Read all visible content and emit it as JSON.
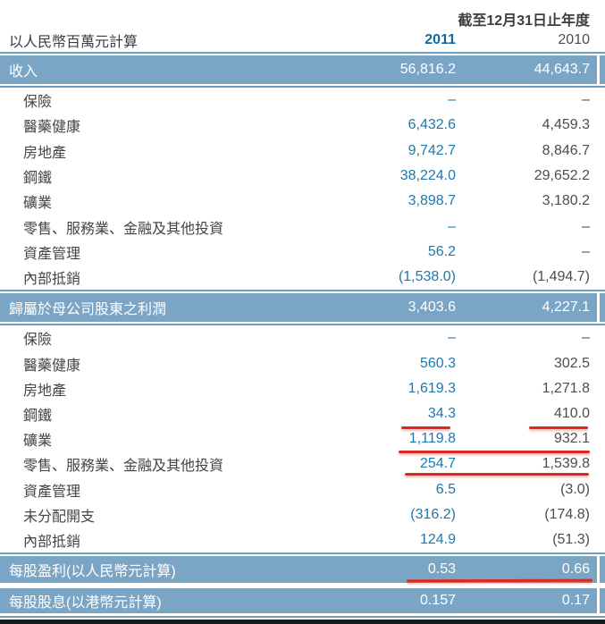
{
  "header": {
    "period": "截至12月31日止年度",
    "unit_label": "以人民幣百萬元計算",
    "col_2011": "2011",
    "col_2010": "2010"
  },
  "revenue_band": {
    "label": "收入",
    "v2011": "56,816.2",
    "v2010": "44,643.7"
  },
  "revenue_rows": [
    {
      "label": "保險",
      "v2011": "–",
      "v2010": "–"
    },
    {
      "label": "醫藥健康",
      "v2011": "6,432.6",
      "v2010": "4,459.3"
    },
    {
      "label": "房地產",
      "v2011": "9,742.7",
      "v2010": "8,846.7"
    },
    {
      "label": "鋼鐵",
      "v2011": "38,224.0",
      "v2010": "29,652.2"
    },
    {
      "label": "礦業",
      "v2011": "3,898.7",
      "v2010": "3,180.2"
    },
    {
      "label": "零售、服務業、金融及其他投資",
      "v2011": "–",
      "v2010": "–"
    },
    {
      "label": "資產管理",
      "v2011": "56.2",
      "v2010": "–"
    },
    {
      "label": "內部抵銷",
      "v2011": "(1,538.0)",
      "v2010": "(1,494.7)"
    }
  ],
  "profit_band": {
    "label": "歸屬於母公司股東之利潤",
    "v2011": "3,403.6",
    "v2010": "4,227.1"
  },
  "profit_rows": [
    {
      "label": "保險",
      "v2011": "–",
      "v2010": "–"
    },
    {
      "label": "醫藥健康",
      "v2011": "560.3",
      "v2010": "302.5"
    },
    {
      "label": "房地產",
      "v2011": "1,619.3",
      "v2010": "1,271.8"
    },
    {
      "label": "鋼鐵",
      "v2011": "34.3",
      "v2010": "410.0"
    },
    {
      "label": "礦業",
      "v2011": "1,119.8",
      "v2010": "932.1"
    },
    {
      "label": "零售、服務業、金融及其他投資",
      "v2011": "254.7",
      "v2010": "1,539.8"
    },
    {
      "label": "資產管理",
      "v2011": "6.5",
      "v2010": "(3.0)"
    },
    {
      "label": "未分配開支",
      "v2011": "(316.2)",
      "v2010": "(174.8)"
    },
    {
      "label": "內部抵銷",
      "v2011": "124.9",
      "v2010": "(51.3)"
    }
  ],
  "eps_band": {
    "label": "每股盈利(以人民幣元計算)",
    "v2011": "0.53",
    "v2010": "0.66"
  },
  "dps_band": {
    "label": "每股股息(以港幣元計算)",
    "v2011": "0.157",
    "v2010": "0.17"
  },
  "annotations": {
    "red_underlined_values": [
      {
        "row": "鋼鐵 (利潤)",
        "values": [
          "34.3",
          "410.0"
        ]
      },
      {
        "row": "礦業 (利潤)",
        "values": [
          "1,119.8",
          "932.1"
        ]
      },
      {
        "row": "零售、服務業、金融及其他投資 (利潤)",
        "values": [
          "254.7",
          "1,539.8"
        ]
      },
      {
        "row": "每股盈利",
        "values": [
          "0.53",
          "0.66"
        ]
      }
    ]
  },
  "colors": {
    "band_fill": "#7ba5c5",
    "band_border": "#6d9ec2",
    "value_2011_blue": "#1f78aa",
    "value_2010_gray": "#4c4d4f",
    "annotation_red": "#dc2a1f",
    "bottom_rule_black": "#191a1a"
  }
}
